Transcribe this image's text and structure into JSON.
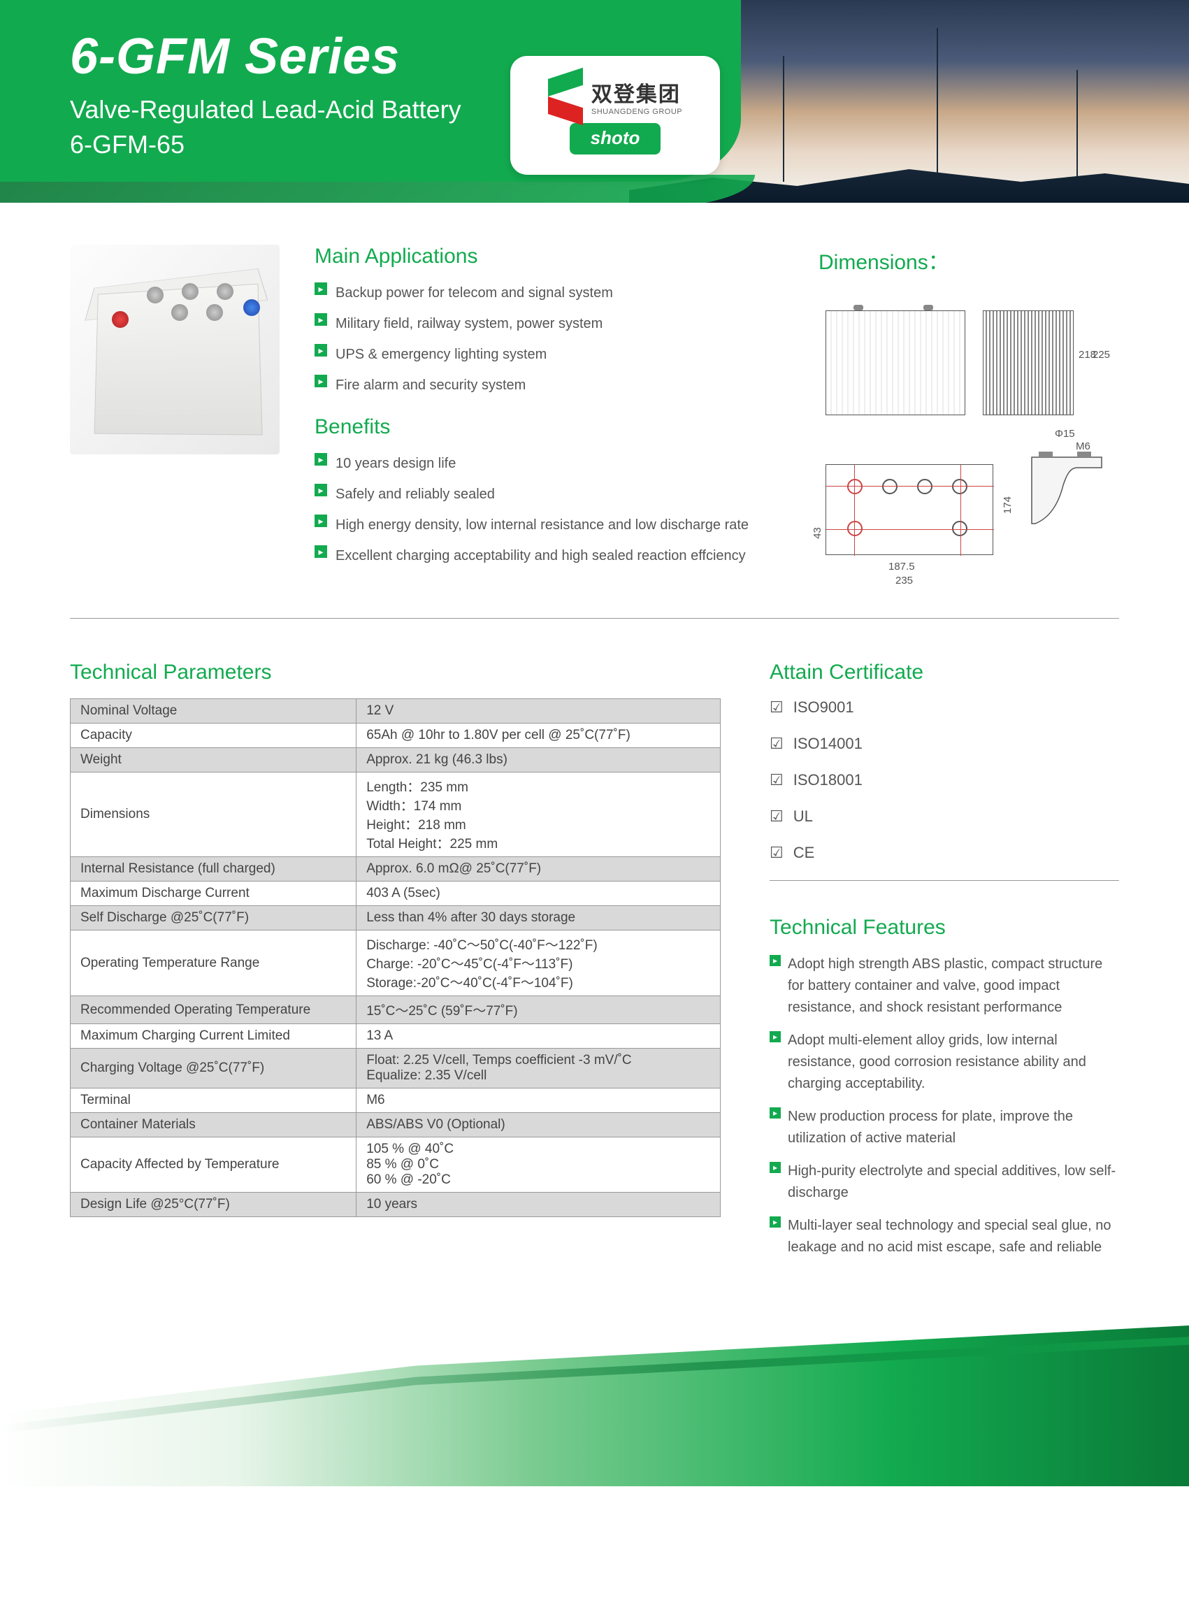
{
  "header": {
    "title": "6-GFM Series",
    "subtitle": "Valve-Regulated Lead-Acid Battery",
    "model": "6-GFM-65",
    "logo_cn": "双登集团",
    "logo_en": "SHUANGDENG GROUP",
    "logo_brand": "shoto"
  },
  "colors": {
    "brand_green": "#12aa4f",
    "dark_green": "#0a7a38",
    "text": "#555555",
    "table_border": "#999999",
    "table_alt_bg": "#d9d9d9"
  },
  "applications": {
    "title": "Main Applications",
    "items": [
      "Backup power for telecom and signal system",
      "Military field, railway system, power system",
      "UPS & emergency lighting system",
      "Fire alarm and security system"
    ]
  },
  "benefits": {
    "title": "Benefits",
    "items": [
      "10 years design life",
      "Safely and reliably  sealed",
      "High energy density, low internal resistance and low discharge rate",
      "Excellent charging acceptability and high sealed reaction effciency"
    ]
  },
  "dimensions": {
    "title": "Dimensions：",
    "labels": {
      "height_218": "218",
      "total_225": "225",
      "phi15": "Φ15",
      "m6": "M6",
      "width_174": "174",
      "depth_43": "43",
      "len_187_5": "187.5",
      "len_235": "235"
    }
  },
  "parameters": {
    "title": "Technical Parameters",
    "rows": [
      {
        "k": "Nominal Voltage",
        "v": "12 V"
      },
      {
        "k": "Capacity",
        "v": "65Ah @ 10hr to 1.80V per cell @ 25˚C(77˚F)"
      },
      {
        "k": "Weight",
        "v": "Approx. 21 kg (46.3 lbs)"
      },
      {
        "k": "Dimensions",
        "v": "Length：235 mm\nWidth：174 mm\nHeight：218 mm\nTotal Height：225 mm"
      },
      {
        "k": "Internal Resistance (full charged)",
        "v": "Approx. 6.0 mΩ@ 25˚C(77˚F)"
      },
      {
        "k": "Maximum Discharge Current",
        "v": "403 A (5sec)"
      },
      {
        "k": "Self Discharge @25˚C(77˚F)",
        "v": "Less than 4% after 30 days storage"
      },
      {
        "k": "Operating Temperature Range",
        "v": "Discharge: -40˚C～50˚C(-40˚F～122˚F)\nCharge: -20˚C～45˚C(-4˚F～113˚F)\nStorage:-20˚C～40˚C(-4˚F～104˚F)"
      },
      {
        "k": "Recommended Operating Temperature",
        "v": "15˚C～25˚C (59˚F～77˚F)"
      },
      {
        "k": "Maximum Charging Current Limited",
        "v": "13 A"
      },
      {
        "k": "Charging Voltage @25˚C(77˚F)",
        "v": "Float: 2.25 V/cell, Temps coefficient -3 mV/˚C\nEqualize: 2.35 V/cell"
      },
      {
        "k": "Terminal",
        "v": "M6"
      },
      {
        "k": "Container Materials",
        "v": "ABS/ABS V0 (Optional)"
      },
      {
        "k": "Capacity Affected by Temperature",
        "v": "105 % @ 40˚C\n85 % @ 0˚C\n60 % @ -20˚C"
      },
      {
        "k": "Design Life @25°C(77˚F)",
        "v": "10 years"
      }
    ]
  },
  "certificates": {
    "title": "Attain Certificate",
    "items": [
      "ISO9001",
      "ISO14001",
      "ISO18001",
      "UL",
      "CE"
    ]
  },
  "features": {
    "title": "Technical Features",
    "items": [
      "Adopt high strength ABS plastic, compact structure for battery container and valve, good impact resistance, and shock resistant performance",
      "Adopt multi-element alloy grids, low internal resistance, good corrosion resistance ability and charging acceptability.",
      "New production process for plate, improve the utilization of active material",
      "High-purity electrolyte and special additives, low self-discharge",
      "Multi-layer seal technology and special seal glue, no leakage and no acid mist escape, safe and reliable"
    ]
  }
}
